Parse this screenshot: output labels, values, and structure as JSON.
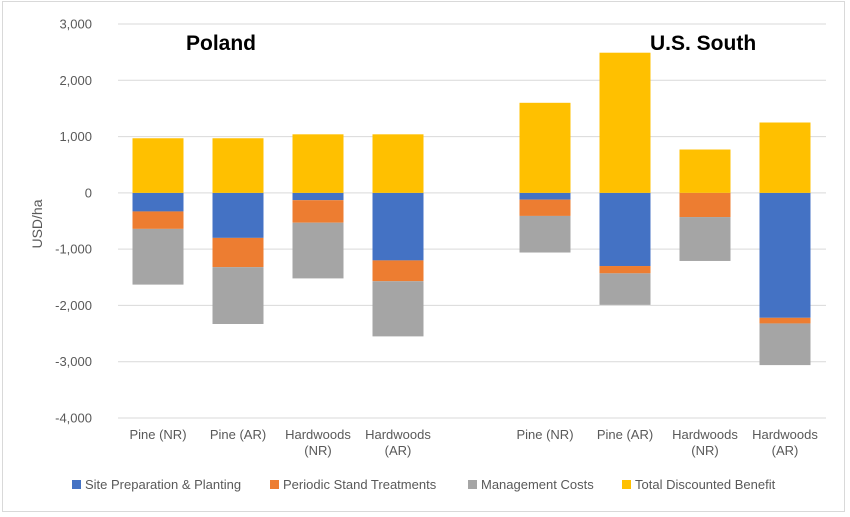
{
  "chart_data": {
    "type": "bar",
    "stacked": true,
    "ylabel": "USD/ha",
    "ylim": [
      -4000,
      3000
    ],
    "yticks": [
      3000,
      2000,
      1000,
      0,
      -1000,
      -2000,
      -3000,
      -4000
    ],
    "ytick_labels": [
      "3,000",
      "2,000",
      "1,000",
      "0",
      "-1,000",
      "-2,000",
      "-3,000",
      "-4,000"
    ],
    "grid": true,
    "legend_position": "bottom",
    "groups": [
      {
        "title": "Poland",
        "categories": [
          {
            "lines": [
              "Pine (NR)"
            ]
          },
          {
            "lines": [
              "Pine (AR)"
            ]
          },
          {
            "lines": [
              "Hardwoods",
              "(NR)"
            ]
          },
          {
            "lines": [
              "Hardwoods",
              "(AR)"
            ]
          }
        ]
      },
      {
        "title": "U.S. South",
        "categories": [
          {
            "lines": [
              "Pine (NR)"
            ]
          },
          {
            "lines": [
              "Pine (AR)"
            ]
          },
          {
            "lines": [
              "Hardwoods",
              "(NR)"
            ]
          },
          {
            "lines": [
              "Hardwoods",
              "(AR)"
            ]
          }
        ]
      }
    ],
    "series": [
      {
        "name": "Site Preparation & Planting",
        "color": "#4472c4",
        "values": [
          -330,
          -800,
          -130,
          -1200,
          -120,
          -1300,
          0,
          -2220
        ]
      },
      {
        "name": "Periodic Stand Treatments",
        "color": "#ed7d31",
        "values": [
          -310,
          -520,
          -400,
          -370,
          -290,
          -130,
          -430,
          -100
        ]
      },
      {
        "name": "Management Costs",
        "color": "#a5a5a5",
        "values": [
          -990,
          -1010,
          -990,
          -980,
          -650,
          -560,
          -780,
          -740
        ]
      },
      {
        "name": "Total Discounted Benefit",
        "color": "#ffc000",
        "values": [
          970,
          970,
          1040,
          1040,
          1600,
          2490,
          770,
          1250
        ]
      }
    ]
  }
}
